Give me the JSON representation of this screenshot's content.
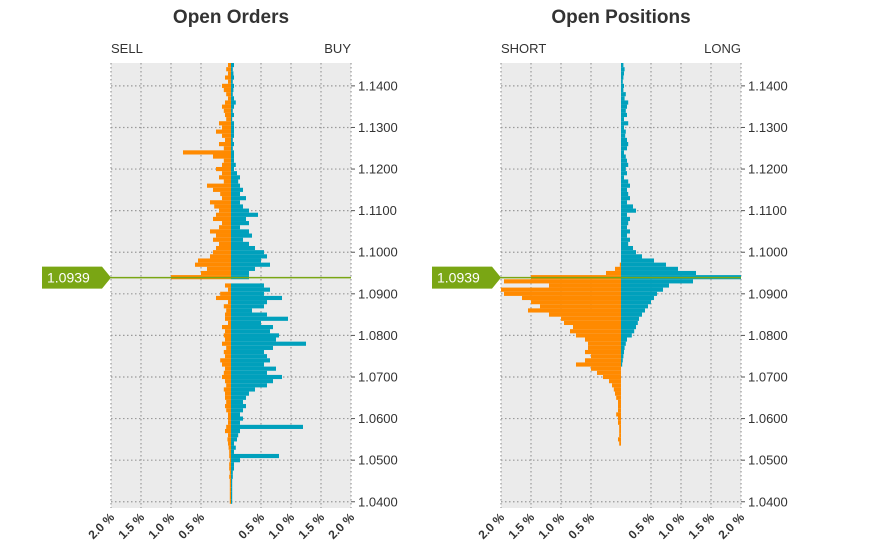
{
  "colors": {
    "left_side": "#ff8a00",
    "right_side": "#00a0bc",
    "price_line": "#7aa614",
    "panel_bg": "#ebebeb",
    "grid": "#9a9a9a"
  },
  "chart_data": [
    {
      "type": "bar",
      "orientation": "horizontal-diverging",
      "title": "Open Orders",
      "left_label": "SELL",
      "right_label": "BUY",
      "current_price_label": "1.0939",
      "current_price": 1.0939,
      "ylim": [
        1.0385,
        1.1455
      ],
      "xlim": [
        -2.0,
        2.0
      ],
      "y_ticks": [
        "1.1400",
        "1.1300",
        "1.1200",
        "1.1100",
        "1.1000",
        "1.0900",
        "1.0800",
        "1.0700",
        "1.0600",
        "1.0500",
        "1.0400"
      ],
      "x_ticks": [
        "2.0 %",
        "1.5 %",
        "1.0 %",
        "0.5 %",
        "0.5 %",
        "1.0 %",
        "1.5 %",
        "2.0 %"
      ],
      "grid": true,
      "bucket_size": 0.001,
      "price_buckets": [
        1.145,
        1.144,
        1.143,
        1.142,
        1.141,
        1.14,
        1.139,
        1.138,
        1.137,
        1.136,
        1.135,
        1.134,
        1.133,
        1.132,
        1.131,
        1.13,
        1.129,
        1.128,
        1.127,
        1.126,
        1.125,
        1.124,
        1.123,
        1.122,
        1.121,
        1.12,
        1.119,
        1.118,
        1.117,
        1.116,
        1.115,
        1.114,
        1.113,
        1.112,
        1.111,
        1.11,
        1.109,
        1.108,
        1.107,
        1.106,
        1.105,
        1.104,
        1.103,
        1.102,
        1.101,
        1.1,
        1.099,
        1.098,
        1.097,
        1.096,
        1.095,
        1.094,
        1.093,
        1.092,
        1.091,
        1.09,
        1.089,
        1.088,
        1.087,
        1.086,
        1.085,
        1.084,
        1.083,
        1.082,
        1.081,
        1.08,
        1.079,
        1.078,
        1.077,
        1.076,
        1.075,
        1.074,
        1.073,
        1.072,
        1.071,
        1.07,
        1.069,
        1.068,
        1.067,
        1.066,
        1.065,
        1.064,
        1.063,
        1.062,
        1.061,
        1.06,
        1.059,
        1.058,
        1.057,
        1.056,
        1.055,
        1.054,
        1.053,
        1.052,
        1.051,
        1.05,
        1.049,
        1.048,
        1.047,
        1.046,
        1.045,
        1.044,
        1.043,
        1.042,
        1.041,
        1.04
      ],
      "series": [
        {
          "name": "SELL",
          "side": "left",
          "values": [
            0.05,
            0.08,
            0.05,
            0.1,
            0.05,
            0.15,
            0.12,
            0.08,
            0.05,
            0.1,
            0.15,
            0.12,
            0.1,
            0.08,
            0.2,
            0.15,
            0.25,
            0.15,
            0.1,
            0.2,
            0.12,
            0.8,
            0.3,
            0.12,
            0.15,
            0.25,
            0.15,
            0.2,
            0.12,
            0.4,
            0.3,
            0.18,
            0.15,
            0.35,
            0.28,
            0.2,
            0.25,
            0.3,
            0.15,
            0.2,
            0.35,
            0.25,
            0.3,
            0.2,
            0.25,
            0.3,
            0.35,
            0.55,
            0.6,
            0.4,
            0.5,
            1.0,
            0,
            0.1,
            0.05,
            0.18,
            0.25,
            0.05,
            0.12,
            0.08,
            0.1,
            0.1,
            0.05,
            0.15,
            0.1,
            0.12,
            0.1,
            0.15,
            0.08,
            0.12,
            0.1,
            0.18,
            0.15,
            0.1,
            0.12,
            0.15,
            0.1,
            0.08,
            0.12,
            0.1,
            0.1,
            0.08,
            0.1,
            0.08,
            0.05,
            0.05,
            0.05,
            0.08,
            0.1,
            0.05,
            0.06,
            0.05,
            0.04,
            0.03,
            0.03,
            0.02,
            0.03,
            0.03,
            0.02,
            0.03,
            0.02,
            0.02,
            0.02,
            0.02,
            0.02,
            0.02
          ]
        },
        {
          "name": "BUY",
          "side": "right",
          "values": [
            0.05,
            0.03,
            0.04,
            0.05,
            0.03,
            0.05,
            0.04,
            0.03,
            0.05,
            0.08,
            0.05,
            0.03,
            0.05,
            0.02,
            0.05,
            0.05,
            0.05,
            0.05,
            0.03,
            0.05,
            0.03,
            0.05,
            0.05,
            0.05,
            0.08,
            0.05,
            0.1,
            0.15,
            0.12,
            0.15,
            0.2,
            0.15,
            0.25,
            0.15,
            0.2,
            0.3,
            0.45,
            0.25,
            0.3,
            0.15,
            0.3,
            0.35,
            0.2,
            0.3,
            0.4,
            0.55,
            0.6,
            0.5,
            0.65,
            0.4,
            0.3,
            0.3,
            0,
            0.55,
            0.65,
            0.55,
            0.85,
            0.6,
            0.55,
            0.35,
            0.6,
            0.95,
            0.5,
            0.7,
            0.65,
            0.8,
            0.75,
            1.25,
            0.7,
            0.55,
            0.6,
            0.65,
            0.55,
            0.75,
            0.6,
            0.85,
            0.7,
            0.6,
            0.4,
            0.3,
            0.25,
            0.2,
            0.25,
            0.2,
            0.15,
            0.2,
            0.15,
            1.2,
            0.15,
            0.12,
            0.1,
            0.05,
            0.08,
            0.05,
            0.8,
            0.15,
            0.05,
            0.05,
            0.03,
            0.03,
            0.02,
            0.02,
            0.02,
            0.02,
            0.02,
            0.02
          ]
        }
      ]
    },
    {
      "type": "bar",
      "orientation": "horizontal-diverging",
      "title": "Open Positions",
      "left_label": "SHORT",
      "right_label": "LONG",
      "current_price_label": "1.0939",
      "current_price": 1.0939,
      "ylim": [
        1.0385,
        1.1455
      ],
      "xlim": [
        -2.0,
        2.0
      ],
      "y_ticks": [
        "1.1400",
        "1.1300",
        "1.1200",
        "1.1100",
        "1.1000",
        "1.0900",
        "1.0800",
        "1.0700",
        "1.0600",
        "1.0500",
        "1.0400"
      ],
      "x_ticks": [
        "2.0 %",
        "1.5 %",
        "1.0 %",
        "0.5 %",
        "0.5 %",
        "1.0 %",
        "1.5 %",
        "2.0 %"
      ],
      "grid": true,
      "bucket_size": 0.001,
      "price_buckets": [
        1.145,
        1.144,
        1.143,
        1.142,
        1.141,
        1.14,
        1.139,
        1.138,
        1.137,
        1.136,
        1.135,
        1.134,
        1.133,
        1.132,
        1.131,
        1.13,
        1.129,
        1.128,
        1.127,
        1.126,
        1.125,
        1.124,
        1.123,
        1.122,
        1.121,
        1.12,
        1.119,
        1.118,
        1.117,
        1.116,
        1.115,
        1.114,
        1.113,
        1.112,
        1.111,
        1.11,
        1.109,
        1.108,
        1.107,
        1.106,
        1.105,
        1.104,
        1.103,
        1.102,
        1.101,
        1.1,
        1.099,
        1.098,
        1.097,
        1.096,
        1.095,
        1.094,
        1.093,
        1.092,
        1.091,
        1.09,
        1.089,
        1.088,
        1.087,
        1.086,
        1.085,
        1.084,
        1.083,
        1.082,
        1.081,
        1.08,
        1.079,
        1.078,
        1.077,
        1.076,
        1.075,
        1.074,
        1.073,
        1.072,
        1.071,
        1.07,
        1.069,
        1.068,
        1.067,
        1.066,
        1.065,
        1.064,
        1.063,
        1.062,
        1.061,
        1.06,
        1.059,
        1.058,
        1.057,
        1.056,
        1.055,
        1.054,
        1.053,
        1.052,
        1.051,
        1.05,
        1.049,
        1.048,
        1.047,
        1.046,
        1.045,
        1.044,
        1.043,
        1.042,
        1.041,
        1.04
      ],
      "series": [
        {
          "name": "SHORT",
          "side": "left",
          "values": [
            0,
            0,
            0,
            0,
            0,
            0,
            0,
            0,
            0,
            0,
            0,
            0,
            0,
            0,
            0,
            0,
            0,
            0,
            0,
            0,
            0,
            0,
            0,
            0,
            0,
            0,
            0,
            0,
            0,
            0,
            0,
            0,
            0,
            0,
            0,
            0,
            0,
            0,
            0,
            0,
            0,
            0,
            0,
            0,
            0,
            0,
            0,
            0,
            0.02,
            0.1,
            0.25,
            1.5,
            1.95,
            1.2,
            2.0,
            1.95,
            1.65,
            1.5,
            1.35,
            1.55,
            1.2,
            1.0,
            0.95,
            0.8,
            0.85,
            0.75,
            0.6,
            0.55,
            0.55,
            0.6,
            0.5,
            0.6,
            0.75,
            0.5,
            0.4,
            0.3,
            0.2,
            0.15,
            0.12,
            0.1,
            0.08,
            0.05,
            0.05,
            0.05,
            0.08,
            0.05,
            0.05,
            0.03,
            0.03,
            0.03,
            0.05,
            0.03,
            0,
            0,
            0,
            0,
            0,
            0,
            0,
            0,
            0,
            0,
            0,
            0,
            0,
            0
          ]
        },
        {
          "name": "LONG",
          "side": "right",
          "values": [
            0.04,
            0.06,
            0.05,
            0.04,
            0.03,
            0.05,
            0.04,
            0.08,
            0.06,
            0.12,
            0.1,
            0.08,
            0.1,
            0.05,
            0.12,
            0.05,
            0.08,
            0.07,
            0.1,
            0.12,
            0.1,
            0.05,
            0.08,
            0.1,
            0.12,
            0.08,
            0.1,
            0.05,
            0.12,
            0.15,
            0.1,
            0.12,
            0.15,
            0.1,
            0.2,
            0.25,
            0.1,
            0.15,
            0.12,
            0.1,
            0.15,
            0.1,
            0.15,
            0.12,
            0.2,
            0.25,
            0.35,
            0.55,
            0.75,
            0.95,
            1.25,
            2.0,
            1.2,
            0.8,
            0.7,
            0.6,
            0.55,
            0.5,
            0.45,
            0.4,
            0.35,
            0.3,
            0.28,
            0.25,
            0.22,
            0.18,
            0.1,
            0.08,
            0.06,
            0.05,
            0.04,
            0.03,
            0.02,
            0,
            0,
            0,
            0,
            0,
            0,
            0,
            0,
            0,
            0,
            0,
            0,
            0,
            0,
            0,
            0,
            0,
            0,
            0,
            0,
            0,
            0,
            0,
            0,
            0,
            0,
            0,
            0,
            0,
            0,
            0,
            0,
            0
          ]
        }
      ]
    }
  ]
}
